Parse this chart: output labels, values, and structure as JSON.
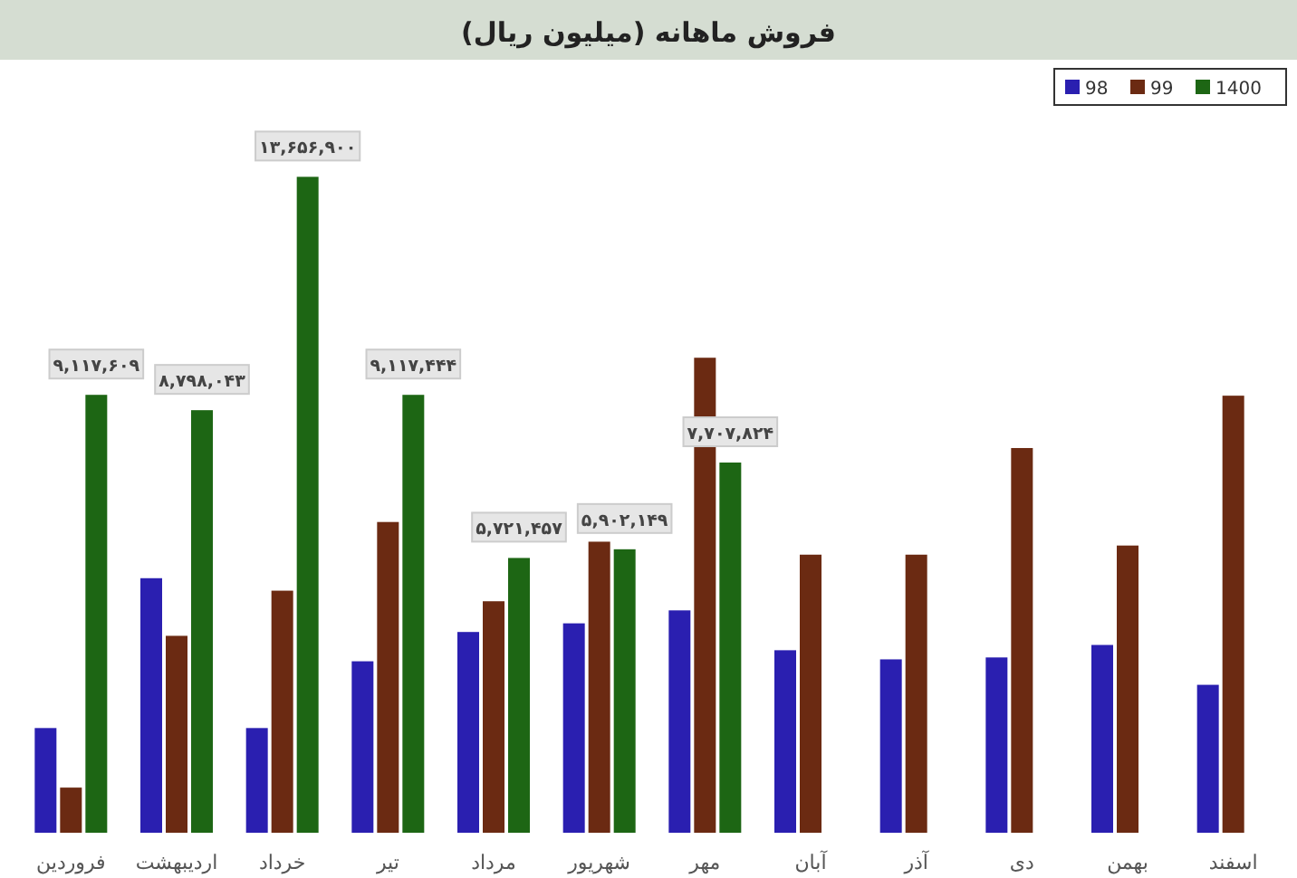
{
  "chart_data": {
    "type": "bar",
    "title": "فروش ماهانه (میلیون ریال)",
    "categories": [
      "فروردین",
      "اردیبهشت",
      "خرداد",
      "تیر",
      "مرداد",
      "شهریور",
      "مهر",
      "آبان",
      "آذر",
      "دی",
      "بهمن",
      "اسفند"
    ],
    "ylim": [
      0,
      14700000
    ],
    "legend": "top right",
    "series": [
      {
        "name": "98",
        "color": "#2a1fb0",
        "values": [
          2180000,
          5300000,
          2180000,
          3570000,
          4180000,
          4360000,
          4630000,
          3800000,
          3610000,
          3650000,
          3910000,
          3080000
        ]
      },
      {
        "name": "99",
        "color": "#6b2a12",
        "values": [
          940000,
          4100000,
          5040000,
          6470000,
          4820000,
          6060000,
          9890000,
          5790000,
          5790000,
          8010000,
          5980000,
          9100000
        ]
      },
      {
        "name": "1400",
        "color": "#1d6614",
        "values": [
          9117609,
          8798043,
          13656900,
          9117444,
          5721457,
          5902149,
          7707824,
          null,
          null,
          null,
          null,
          null
        ],
        "value_labels": [
          "۹,۱۱۷,۶۰۹",
          "۸,۷۹۸,۰۴۳",
          "۱۳,۶۵۶,۹۰۰",
          "۹,۱۱۷,۴۴۴",
          "۵,۷۲۱,۴۵۷",
          "۵,۹۰۲,۱۴۹",
          "۷,۷۰۷,۸۲۴",
          null,
          null,
          null,
          null,
          null
        ]
      }
    ]
  }
}
